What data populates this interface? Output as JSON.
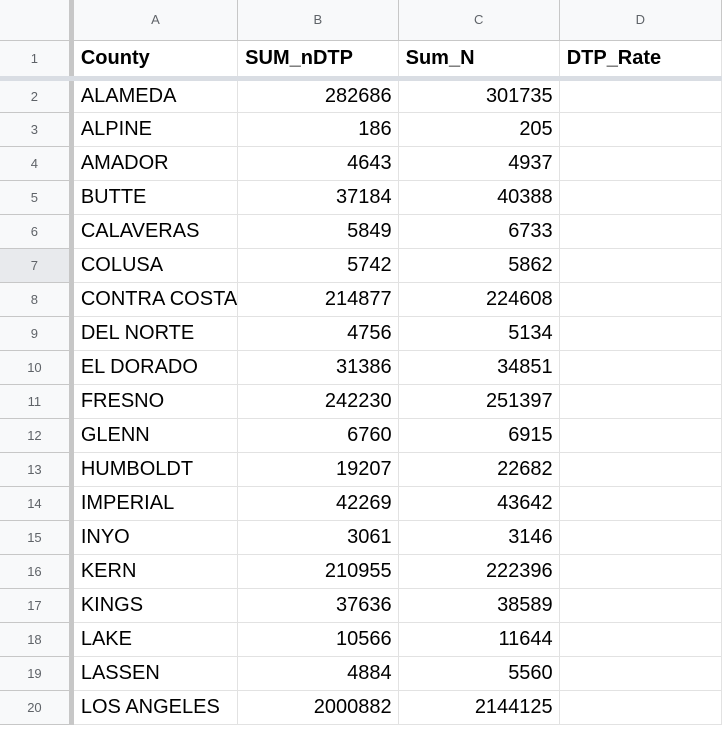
{
  "columns": [
    "A",
    "B",
    "C",
    "D"
  ],
  "header_row": {
    "row_number": "1",
    "cells": [
      "County",
      "SUM_nDTP",
      "Sum_N",
      "DTP_Rate"
    ]
  },
  "rows": [
    {
      "row_number": "2",
      "county": "ALAMEDA",
      "sum_ndtp": "282686",
      "sum_n": "301735",
      "dtp_rate": ""
    },
    {
      "row_number": "3",
      "county": "ALPINE",
      "sum_ndtp": "186",
      "sum_n": "205",
      "dtp_rate": ""
    },
    {
      "row_number": "4",
      "county": "AMADOR",
      "sum_ndtp": "4643",
      "sum_n": "4937",
      "dtp_rate": ""
    },
    {
      "row_number": "5",
      "county": "BUTTE",
      "sum_ndtp": "37184",
      "sum_n": "40388",
      "dtp_rate": ""
    },
    {
      "row_number": "6",
      "county": "CALAVERAS",
      "sum_ndtp": "5849",
      "sum_n": "6733",
      "dtp_rate": ""
    },
    {
      "row_number": "7",
      "county": "COLUSA",
      "sum_ndtp": "5742",
      "sum_n": "5862",
      "dtp_rate": ""
    },
    {
      "row_number": "8",
      "county": "CONTRA COSTA",
      "sum_ndtp": "214877",
      "sum_n": "224608",
      "dtp_rate": ""
    },
    {
      "row_number": "9",
      "county": "DEL NORTE",
      "sum_ndtp": "4756",
      "sum_n": "5134",
      "dtp_rate": ""
    },
    {
      "row_number": "10",
      "county": "EL DORADO",
      "sum_ndtp": "31386",
      "sum_n": "34851",
      "dtp_rate": ""
    },
    {
      "row_number": "11",
      "county": "FRESNO",
      "sum_ndtp": "242230",
      "sum_n": "251397",
      "dtp_rate": ""
    },
    {
      "row_number": "12",
      "county": "GLENN",
      "sum_ndtp": "6760",
      "sum_n": "6915",
      "dtp_rate": ""
    },
    {
      "row_number": "13",
      "county": "HUMBOLDT",
      "sum_ndtp": "19207",
      "sum_n": "22682",
      "dtp_rate": ""
    },
    {
      "row_number": "14",
      "county": "IMPERIAL",
      "sum_ndtp": "42269",
      "sum_n": "43642",
      "dtp_rate": ""
    },
    {
      "row_number": "15",
      "county": "INYO",
      "sum_ndtp": "3061",
      "sum_n": "3146",
      "dtp_rate": ""
    },
    {
      "row_number": "16",
      "county": "KERN",
      "sum_ndtp": "210955",
      "sum_n": "222396",
      "dtp_rate": ""
    },
    {
      "row_number": "17",
      "county": "KINGS",
      "sum_ndtp": "37636",
      "sum_n": "38589",
      "dtp_rate": ""
    },
    {
      "row_number": "18",
      "county": "LAKE",
      "sum_ndtp": "10566",
      "sum_n": "11644",
      "dtp_rate": ""
    },
    {
      "row_number": "19",
      "county": "LASSEN",
      "sum_ndtp": "4884",
      "sum_n": "5560",
      "dtp_rate": ""
    },
    {
      "row_number": "20",
      "county": "LOS ANGELES",
      "sum_ndtp": "2000882",
      "sum_n": "2144125",
      "dtp_rate": ""
    }
  ],
  "selected_row": "7"
}
